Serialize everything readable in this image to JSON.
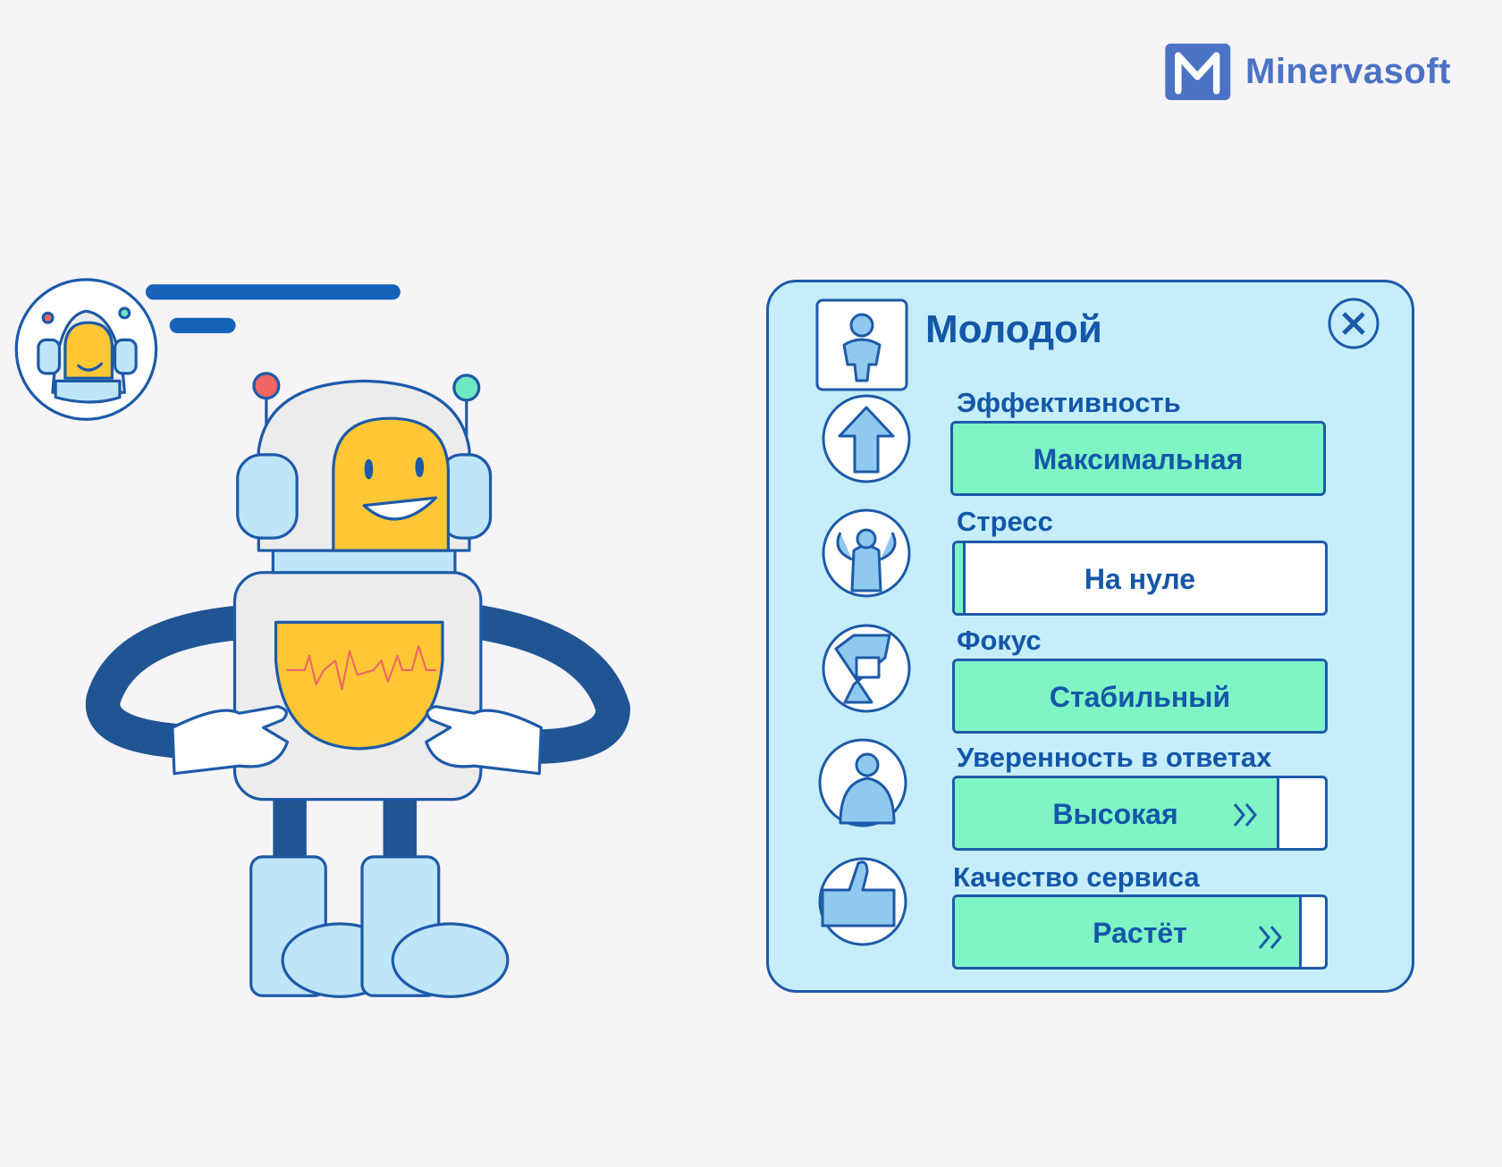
{
  "brand": "Minervasoft",
  "panel": {
    "title": "Молодой",
    "stats": [
      {
        "label": "Эффективность",
        "value": "Максимальная"
      },
      {
        "label": "Стресс",
        "value": "На нуле"
      },
      {
        "label": "Фокус",
        "value": "Стабильный"
      },
      {
        "label": "Уверенность в ответах",
        "value": "Высокая"
      },
      {
        "label": "Качество сервиса",
        "value": "Растёт"
      }
    ]
  }
}
